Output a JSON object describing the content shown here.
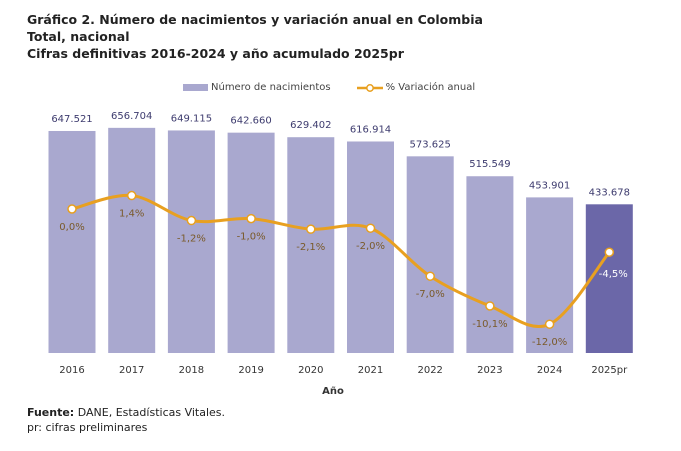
{
  "title_lines": [
    "Gráfico 2. Número de nacimientos y variación anual en Colombia",
    "Total, nacional",
    "Cifras definitivas 2016-2024 y año acumulado 2025pr"
  ],
  "footer": {
    "source_label": "Fuente:",
    "source_text": " DANE, Estadísticas Vitales.",
    "note": "pr: cifras preliminares"
  },
  "chart_data": {
    "type": "bar+line",
    "xlabel": "Año",
    "categories": [
      "2016",
      "2017",
      "2018",
      "2019",
      "2020",
      "2021",
      "2022",
      "2023",
      "2024",
      "2025pr"
    ],
    "series": [
      {
        "name": "Número de nacimientos",
        "type": "bar",
        "axis": "primary",
        "values": [
          647521,
          656704,
          649115,
          642660,
          629402,
          616914,
          573625,
          515549,
          453901,
          433678
        ],
        "labels": [
          "647.521",
          "656.704",
          "649.115",
          "642.660",
          "629.402",
          "616.914",
          "573.625",
          "515.549",
          "453.901",
          "433.678"
        ],
        "color": "#a9a8cf",
        "highlight_color": "#6b67a8",
        "highlight_index": 9
      },
      {
        "name": "% Variación anual",
        "type": "line",
        "axis": "secondary",
        "values": [
          0.0,
          1.4,
          -1.2,
          -1.0,
          -2.1,
          -2.0,
          -7.0,
          -10.1,
          -12.0,
          -4.5
        ],
        "labels": [
          "0,0%",
          "1,4%",
          "-1,2%",
          "-1,0%",
          "-2,1%",
          "-2,0%",
          "-7,0%",
          "-10,1%",
          "-12,0%",
          "-4,5%"
        ],
        "color": "#e8a020"
      }
    ],
    "ylim": [
      0,
      700000
    ],
    "y2lim": [
      -15,
      10
    ],
    "grid": false,
    "legend": "top-center"
  }
}
